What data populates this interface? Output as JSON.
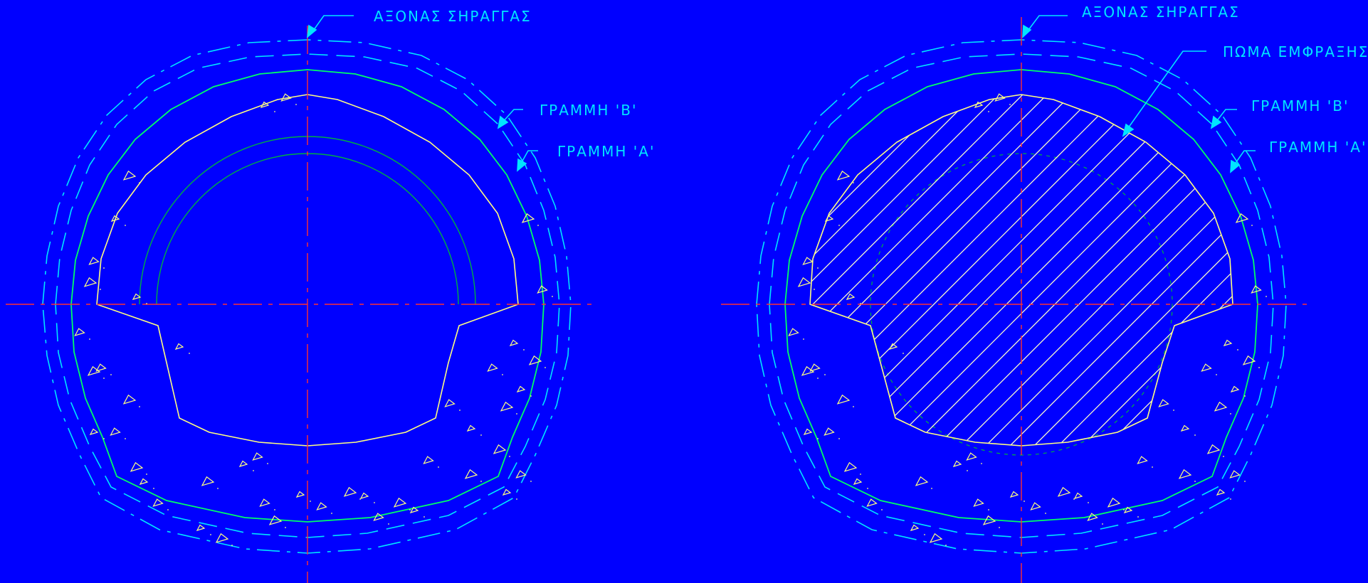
{
  "colors": {
    "background": "#0000FF",
    "axis": "#FF3030",
    "dashed_outline": "#00E5FF",
    "leader": "#00E5FF",
    "outer_lining": "#00FF66",
    "inner_lining": "#FFFF80",
    "inner_ring": "#00B040",
    "hatch": "#FFFFCC",
    "aggregate": "#FFFF80"
  },
  "left_section": {
    "label_axis": "ΑΞΟΝΑΣ ΣΗΡΑΓΓΑΣ",
    "label_line_b": "ΓΡΑΜΜΗ  'Β'",
    "label_line_a": "ΓΡΑΜΜΗ  'Α'"
  },
  "right_section": {
    "label_axis": "ΑΞΟΝΑΣ ΣΗΡΑΓΓΑΣ",
    "label_plug": "ΠΩΜΑ ΕΜΦΡΑΞΗΣ",
    "label_line_b": "ΓΡΑΜΜΗ  'Β'",
    "label_line_a": "ΓΡΑΜΜΗ  'Α'"
  }
}
